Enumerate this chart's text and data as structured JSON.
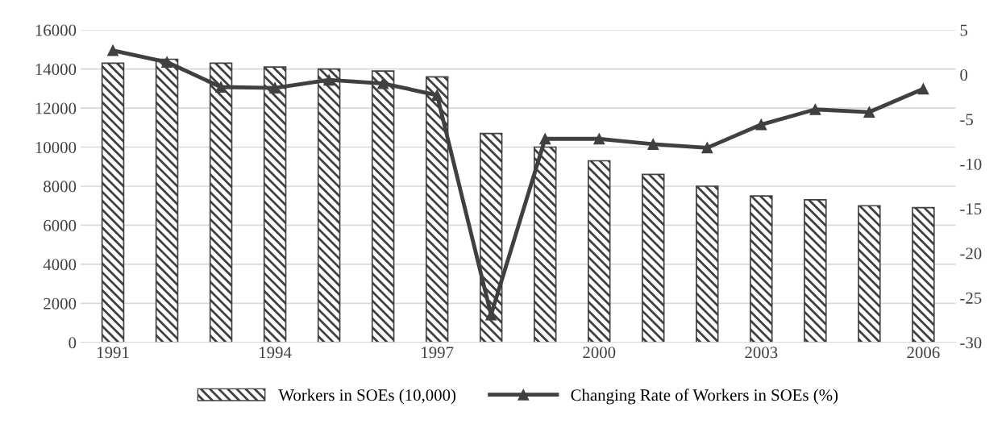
{
  "chart_data": {
    "type": "bar",
    "categories": [
      "1991",
      null,
      null,
      "1994",
      null,
      null,
      "1997",
      null,
      null,
      "2000",
      null,
      null,
      "2003",
      null,
      null,
      "2006"
    ],
    "series": [
      {
        "name": "Workers in SOEs (10,000)",
        "color": "#404040",
        "values": [
          14300,
          14500,
          14300,
          14100,
          14000,
          13900,
          13600,
          10700,
          10000,
          9300,
          8600,
          8000,
          7500,
          7300,
          7000,
          6900
        ]
      },
      {
        "name": "Changing Rate of Workers in SOEs (%)",
        "type": "line",
        "axis": "y2",
        "color": "#404040",
        "marker": "triangle",
        "values": [
          2.7,
          1.4,
          -1.4,
          -1.5,
          -0.6,
          -1.0,
          -2.3,
          -26.9,
          -7.2,
          -7.2,
          -7.8,
          -8.2,
          -5.6,
          -3.9,
          -4.2,
          -1.6
        ]
      }
    ],
    "ylim": [
      0,
      16000
    ],
    "yticks": [
      0,
      2000,
      4000,
      6000,
      8000,
      10000,
      12000,
      14000,
      16000
    ],
    "y2lim": [
      -30,
      5
    ],
    "y2ticks": [
      -30,
      -25,
      -20,
      -15,
      -10,
      -5,
      0,
      5
    ],
    "grid": "y",
    "legend": "bottom"
  }
}
